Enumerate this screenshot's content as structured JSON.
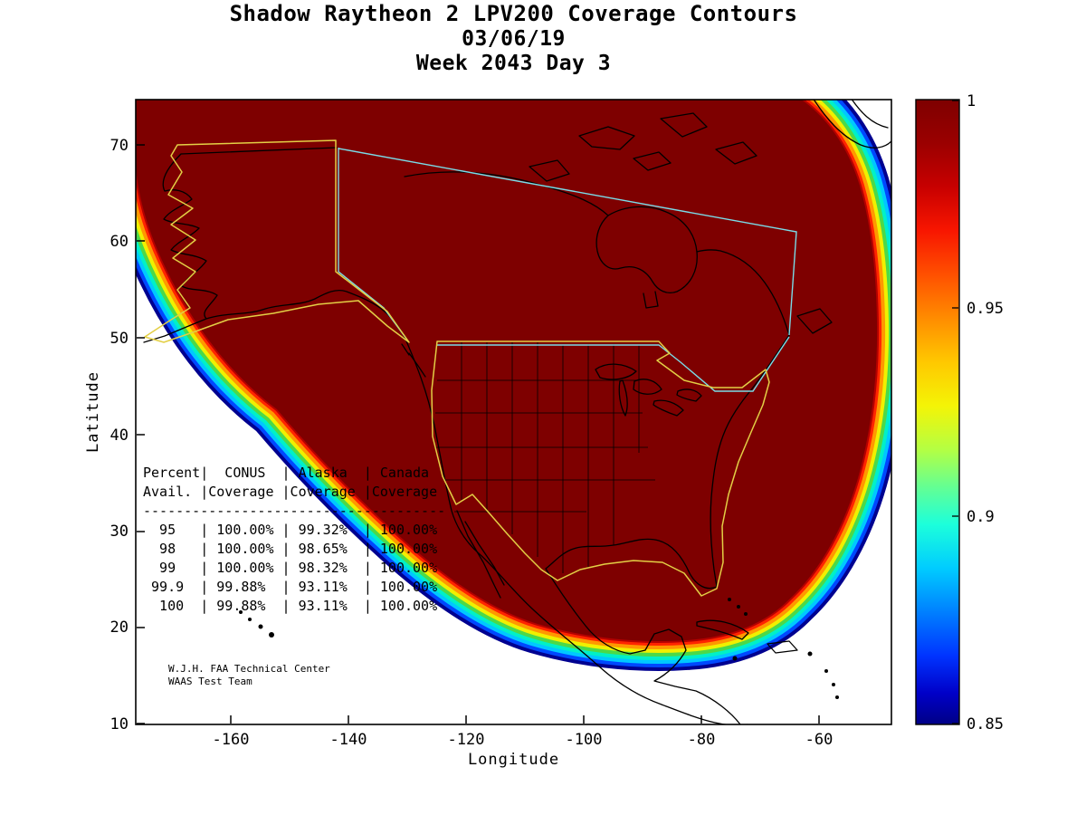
{
  "title": {
    "line1": "Shadow Raytheon 2 LPV200 Coverage Contours",
    "line2": "03/06/19",
    "line3": "Week 2043 Day 3"
  },
  "axes": {
    "x_label": "Longitude",
    "y_label": "Latitude",
    "x_tick_labels": [
      "-160",
      "-140",
      "-120",
      "-100",
      "-80",
      "-60"
    ],
    "y_tick_labels": [
      "70",
      "60",
      "50",
      "40",
      "30",
      "20",
      "10"
    ]
  },
  "colorbar": {
    "tick_labels": [
      "1",
      "0.95",
      "0.9",
      "0.85"
    ],
    "min": 0.85,
    "max": 1,
    "colormap": "jet"
  },
  "coverage_table": {
    "header_row1": [
      "Percent",
      "CONUS",
      "Alaska",
      "Canada"
    ],
    "header_row2": [
      "Avail.",
      "Coverage",
      "Coverage",
      "Coverage"
    ],
    "rows": [
      [
        "95",
        "100.00%",
        "99.32%",
        "100.00%"
      ],
      [
        "98",
        "100.00%",
        "98.65%",
        "100.00%"
      ],
      [
        "99",
        "100.00%",
        "98.32%",
        "100.00%"
      ],
      [
        "99.9",
        "99.88%",
        "93.11%",
        "100.00%"
      ],
      [
        "100",
        "99.88%",
        "93.11%",
        "100.00%"
      ]
    ]
  },
  "annotation": {
    "line1": "W.J.H. FAA Technical Center",
    "line2": "WAAS Test Team"
  },
  "chart_data": {
    "type": "contour",
    "title": "Shadow Raytheon 2 LPV200 Coverage Contours",
    "date": "03/06/19",
    "gps_week": 2043,
    "gps_day": 3,
    "xlabel": "Longitude",
    "ylabel": "Latitude",
    "xlim": [
      -175,
      -48
    ],
    "ylim": [
      10,
      75
    ],
    "x_ticks": [
      -160,
      -140,
      -120,
      -100,
      -80,
      -60
    ],
    "y_ticks": [
      10,
      20,
      30,
      40,
      50,
      60,
      70
    ],
    "grid": false,
    "colorbar": {
      "min": 0.85,
      "max": 1,
      "ticks": [
        1,
        0.95,
        0.9,
        0.85
      ],
      "colormap": "jet",
      "position": "right"
    },
    "contour_fill": "LPV200 availability; interior of North America saturated at 1 (dark red), rainbow fringe bands from 1 down to 0.85 along the southwest Pacific, southern and eastern oceanic edges",
    "regions_outlined": [
      "CONUS (yellow)",
      "Alaska (yellow)",
      "Canada (cyan)"
    ],
    "availability_table": {
      "columns": [
        "Percent Avail.",
        "CONUS Coverage",
        "Alaska Coverage",
        "Canada Coverage"
      ],
      "rows": [
        [
          "95",
          "100.00%",
          "99.32%",
          "100.00%"
        ],
        [
          "98",
          "100.00%",
          "98.65%",
          "100.00%"
        ],
        [
          "99",
          "100.00%",
          "98.32%",
          "100.00%"
        ],
        [
          "99.9",
          "99.88%",
          "93.11%",
          "100.00%"
        ],
        [
          "100",
          "99.88%",
          "93.11%",
          "100.00%"
        ]
      ]
    },
    "annotations": [
      "W.J.H. FAA Technical Center",
      "WAAS Test Team"
    ]
  }
}
